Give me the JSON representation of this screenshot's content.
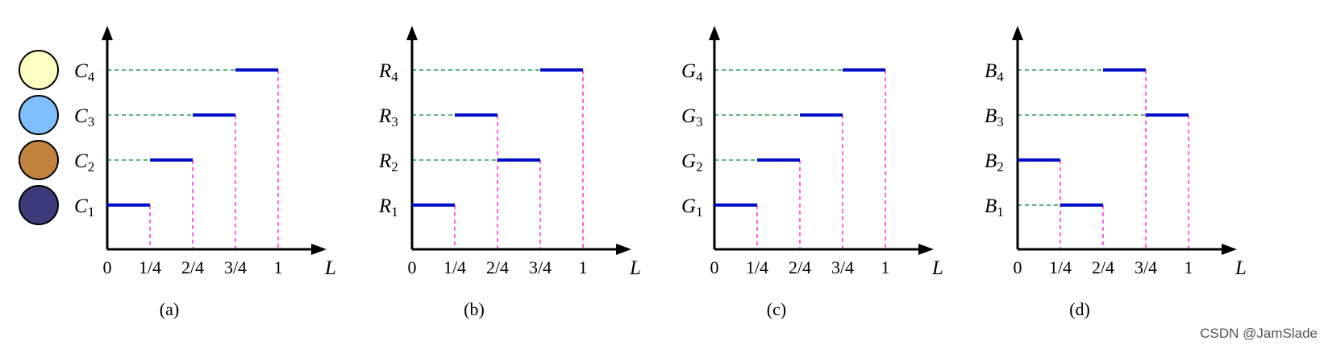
{
  "legend": [
    {
      "name": "C4",
      "color": "#ffffc4"
    },
    {
      "name": "C3",
      "color": "#7fbfff"
    },
    {
      "name": "C2",
      "color": "#c0843e"
    },
    {
      "name": "C1",
      "color": "#3c3a78"
    }
  ],
  "x_ticks": [
    "0",
    "1/4",
    "2/4",
    "3/4",
    "1"
  ],
  "x_axis_label": "L",
  "panels": [
    {
      "caption": "(a)",
      "letter": "C",
      "levels": [
        {
          "sub": "1",
          "seg": [
            0,
            1
          ]
        },
        {
          "sub": "2",
          "seg": [
            1,
            2
          ]
        },
        {
          "sub": "3",
          "seg": [
            2,
            3
          ]
        },
        {
          "sub": "4",
          "seg": [
            3,
            4
          ]
        }
      ]
    },
    {
      "caption": "(b)",
      "letter": "R",
      "levels": [
        {
          "sub": "1",
          "seg": [
            0,
            1
          ]
        },
        {
          "sub": "2",
          "seg": [
            2,
            3
          ]
        },
        {
          "sub": "3",
          "seg": [
            1,
            2
          ]
        },
        {
          "sub": "4",
          "seg": [
            3,
            4
          ]
        }
      ]
    },
    {
      "caption": "(c)",
      "letter": "G",
      "levels": [
        {
          "sub": "1",
          "seg": [
            0,
            1
          ]
        },
        {
          "sub": "2",
          "seg": [
            1,
            2
          ]
        },
        {
          "sub": "3",
          "seg": [
            2,
            3
          ]
        },
        {
          "sub": "4",
          "seg": [
            3,
            4
          ]
        }
      ]
    },
    {
      "caption": "(d)",
      "letter": "B",
      "levels": [
        {
          "sub": "1",
          "seg": [
            1,
            2
          ]
        },
        {
          "sub": "2",
          "seg": [
            0,
            1
          ]
        },
        {
          "sub": "3",
          "seg": [
            3,
            4
          ]
        },
        {
          "sub": "4",
          "seg": [
            2,
            3
          ]
        }
      ]
    }
  ],
  "colors": {
    "axis": "#000000",
    "segment": "#0010c8",
    "h_guide": "#22a050",
    "v_guide": "#ff33cc"
  },
  "watermark": "CSDN @JamSlade"
}
